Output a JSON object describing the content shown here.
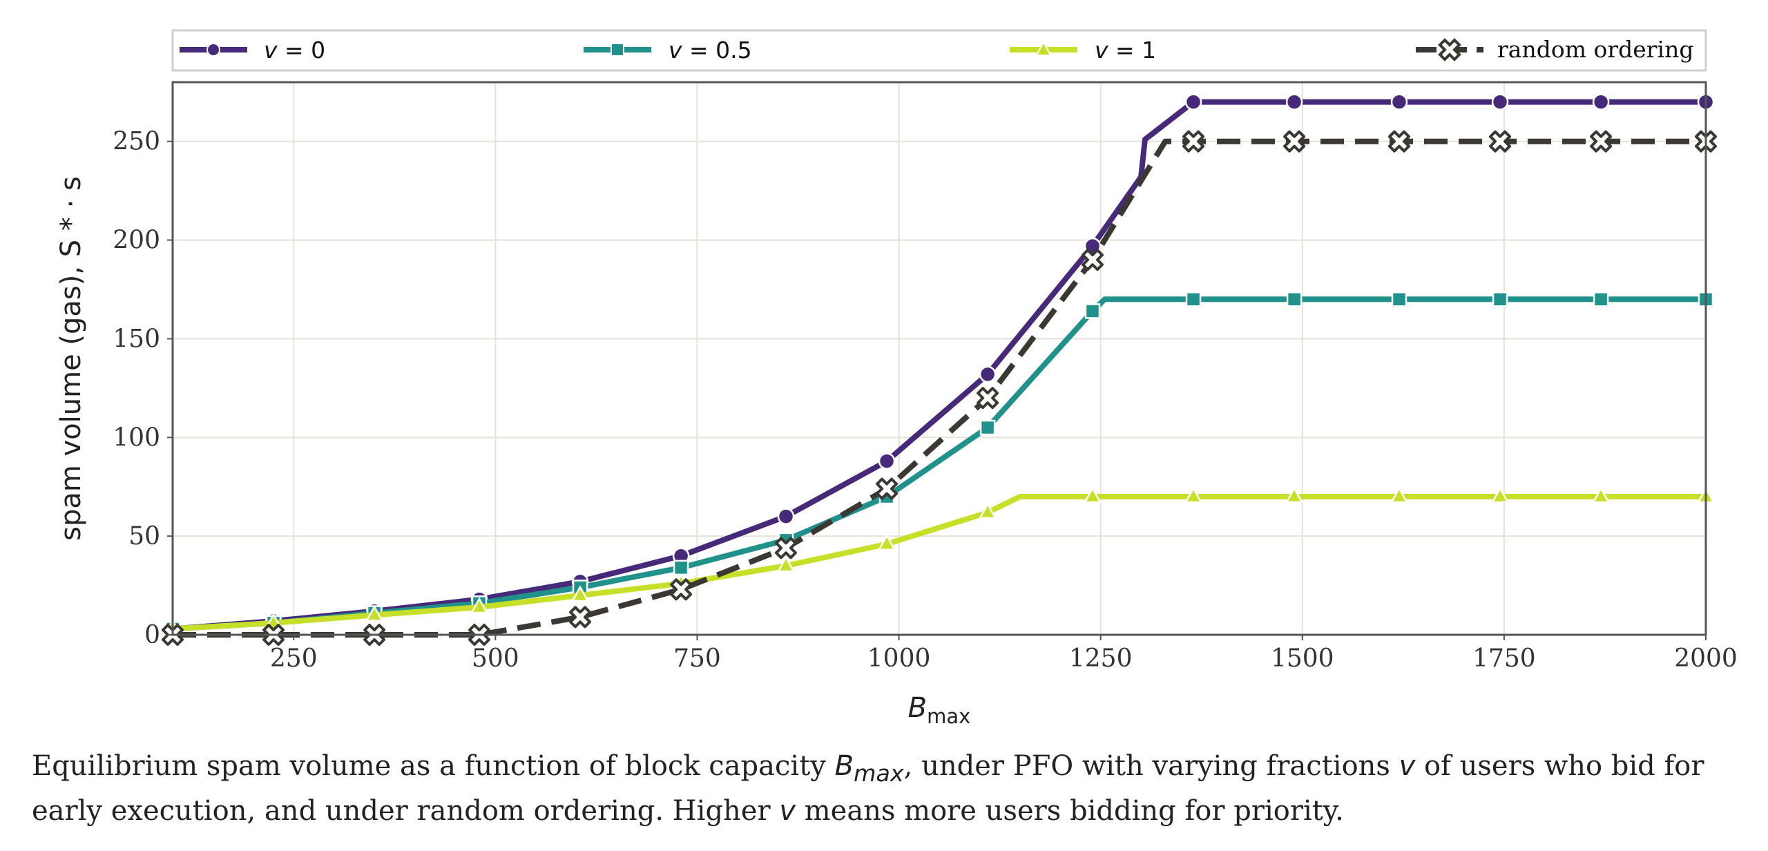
{
  "chart_data": {
    "type": "line",
    "xlabel": "B",
    "xlabel_sub": "max",
    "ylabel": "spam volume (gas), S * · s",
    "xlim": [
      100,
      2000
    ],
    "ylim": [
      0,
      280
    ],
    "xticks": [
      250,
      500,
      750,
      1000,
      1250,
      1500,
      1750,
      2000
    ],
    "yticks": [
      0,
      50,
      100,
      150,
      200,
      250
    ],
    "grid": true,
    "legend_position": "top",
    "series": [
      {
        "name": "v = 0",
        "color": "#47297a",
        "marker": "circle",
        "dash": "solid",
        "x": [
          100,
          225,
          350,
          480,
          605,
          730,
          860,
          985,
          1110,
          1240,
          1300,
          1305,
          1365,
          1490,
          1620,
          1745,
          1870,
          2000
        ],
        "y": [
          3,
          7,
          12,
          18,
          27,
          40,
          60,
          88,
          132,
          197,
          232,
          251,
          270,
          270,
          270,
          270,
          270,
          270
        ],
        "marker_x": [
          100,
          225,
          350,
          480,
          605,
          730,
          860,
          985,
          1110,
          1240,
          1365,
          1490,
          1620,
          1745,
          1870,
          2000
        ],
        "marker_y": [
          3,
          7,
          12,
          18,
          27,
          40,
          60,
          88,
          132,
          197,
          270,
          270,
          270,
          270,
          270,
          270
        ]
      },
      {
        "name": "v = 0.5",
        "color": "#21918c",
        "marker": "square",
        "dash": "solid",
        "x": [
          100,
          225,
          350,
          480,
          605,
          730,
          860,
          985,
          1110,
          1240,
          1255,
          1365,
          1490,
          1620,
          1745,
          1870,
          2000
        ],
        "y": [
          3,
          6,
          11,
          16,
          24,
          34,
          48,
          70,
          105,
          164,
          170,
          170,
          170,
          170,
          170,
          170,
          170
        ],
        "marker_x": [
          100,
          225,
          350,
          480,
          605,
          730,
          860,
          985,
          1110,
          1240,
          1365,
          1490,
          1620,
          1745,
          1870,
          2000
        ],
        "marker_y": [
          3,
          6,
          11,
          16,
          24,
          34,
          48,
          70,
          105,
          164,
          170,
          170,
          170,
          170,
          170,
          170
        ]
      },
      {
        "name": "v = 1",
        "color": "#c8df2a",
        "marker": "triangle",
        "dash": "solid",
        "x": [
          100,
          225,
          350,
          480,
          605,
          730,
          860,
          985,
          1110,
          1150,
          1240,
          1365,
          1490,
          1620,
          1745,
          1870,
          2000
        ],
        "y": [
          3,
          6,
          10,
          14,
          20,
          26,
          35,
          46,
          62,
          70,
          70,
          70,
          70,
          70,
          70,
          70,
          70
        ],
        "marker_x": [
          100,
          225,
          350,
          480,
          605,
          730,
          860,
          985,
          1110,
          1240,
          1365,
          1490,
          1620,
          1745,
          1870,
          2000
        ],
        "marker_y": [
          3,
          6,
          10,
          14,
          20,
          26,
          35,
          46,
          62,
          70,
          70,
          70,
          70,
          70,
          70,
          70
        ]
      },
      {
        "name": "random ordering",
        "color": "#3b3833",
        "marker": "x-cross",
        "dash": "dashed",
        "x": [
          100,
          225,
          350,
          480,
          605,
          730,
          860,
          985,
          1110,
          1240,
          1330,
          1365,
          1490,
          1620,
          1745,
          1870,
          2000
        ],
        "y": [
          0,
          0,
          0,
          0,
          9,
          23,
          44,
          74,
          120,
          190,
          250,
          250,
          250,
          250,
          250,
          250,
          250
        ],
        "marker_x": [
          100,
          225,
          350,
          480,
          605,
          730,
          860,
          985,
          1110,
          1240,
          1365,
          1490,
          1620,
          1745,
          1870,
          2000
        ],
        "marker_y": [
          0,
          0,
          0,
          0,
          9,
          23,
          44,
          74,
          120,
          190,
          250,
          250,
          250,
          250,
          250,
          250
        ]
      }
    ]
  },
  "legend": {
    "v0_prefix": "v",
    "v0_value": " = 0",
    "v05_prefix": "v",
    "v05_value": " = 0.5",
    "v1_prefix": "v",
    "v1_value": " = 1",
    "random_label": "random ordering"
  },
  "caption": {
    "part1": "Equilibrium spam volume as a function of block capacity ",
    "bmax": "B",
    "bmax_sub": "max",
    "part2": ", under PFO with varying fractions ",
    "v": "v",
    "part3": " of users who bid for early execution, and under random ordering. Higher ",
    "v2": "v",
    "part4": " means more users bidding for priority."
  }
}
